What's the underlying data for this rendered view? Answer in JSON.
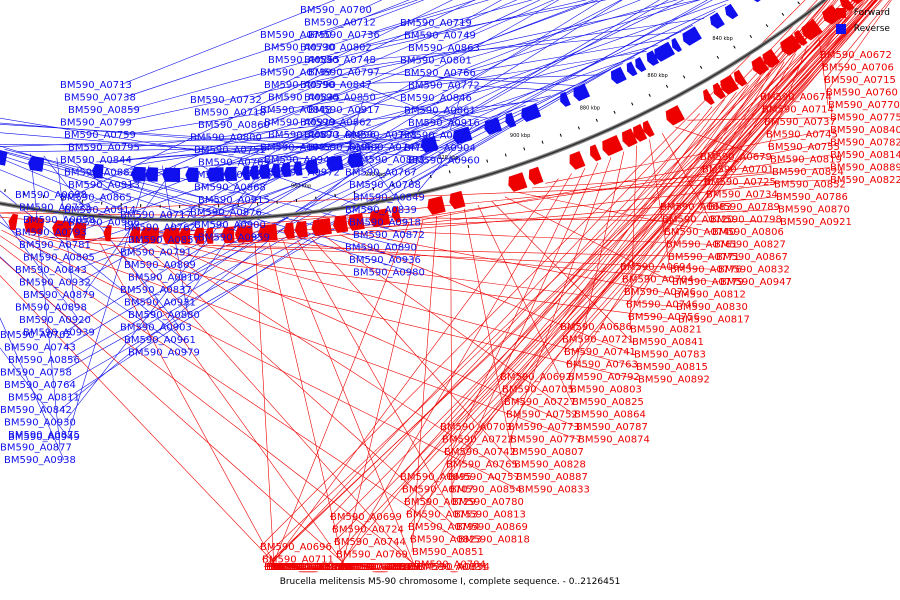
{
  "legend": {
    "forward_label": "Forward",
    "reverse_label": "Reverse",
    "forward_color": "#ee0000",
    "reverse_color": "#1010ee"
  },
  "caption": "Brucella melitensis M5-90 chromosome I, complete sequence. - 0..2126451",
  "scale": {
    "kbp_ticks": [
      "680 kbp",
      "700 kbp",
      "720 kbp",
      "740 kbp",
      "760 kbp",
      "780 kbp",
      "800 kbp",
      "820 kbp",
      "840 kbp",
      "860 kbp",
      "880 kbp",
      "900 kbp",
      "920 kbp",
      "940 kbp",
      "960 kbp"
    ]
  },
  "reverse_genes": [
    "BM590_A0700",
    "BM590_A0719",
    "BM590_A0732",
    "BM590_A0713",
    "BM590_A0698",
    "BM590_A0717",
    "BM590_A0702",
    "BM590_A0750",
    "BM590_A0728",
    "BM590_A0712",
    "BM590_A0749",
    "BM590_A0718",
    "BM590_A0738",
    "BM590_A0723",
    "BM590_A0762",
    "BM590_A0743",
    "BM590_A0730",
    "BM590_A0747",
    "BM590_A0736",
    "BM590_A0863",
    "BM590_A0860",
    "BM590_A0859",
    "BM590_A0858",
    "BM590_A0857",
    "BM590_A0856",
    "BM590_A0855",
    "BM590_A0853",
    "BM590_A0802",
    "BM590_A0801",
    "BM590_A0800",
    "BM590_A0799",
    "BM590_A0793",
    "BM590_A0791",
    "BM590_A0758",
    "BM590_A0739",
    "BM590_A0767",
    "BM590_A0748",
    "BM590_A0766",
    "BM590_A0751",
    "BM590_A0759",
    "BM590_A0781",
    "BM590_A0809",
    "BM590_A0764",
    "BM590_A0790",
    "BM590_A0768",
    "BM590_A0797",
    "BM590_A0772",
    "BM590_A0785",
    "BM590_A0795",
    "BM590_A0805",
    "BM590_A0810",
    "BM590_A0811",
    "BM590_A0835",
    "BM590_A0849",
    "BM590_A0847",
    "BM590_A0846",
    "BM590_A0845",
    "BM590_A0844",
    "BM590_A0843",
    "BM590_A0837",
    "BM590_A0842",
    "BM590_A0848",
    "BM590_A0839",
    "BM590_A0850",
    "BM590_A0861",
    "BM590_A0868",
    "BM590_A0882",
    "BM590_A0932",
    "BM590_A0931",
    "BM590_A0930",
    "BM590_A0929",
    "BM590_A0918",
    "BM590_A0917",
    "BM590_A0916",
    "BM590_A0915",
    "BM590_A0913",
    "BM590_A0879",
    "BM590_A0880",
    "BM590_A0875",
    "BM590_A0873",
    "BM590_A0872",
    "BM590_A0862",
    "BM590_A0871",
    "BM590_A0876",
    "BM590_A0865",
    "BM590_A0898",
    "BM590_A0903",
    "BM590_A0877",
    "BM590_A0933",
    "BM590_A0890",
    "BM590_A0896",
    "BM590_A0904",
    "BM590_A0900",
    "BM590_A0914",
    "BM590_A0920",
    "BM590_A0961",
    "BM590_A0938",
    "BM590_A0946",
    "BM590_A0936",
    "BM590_A0962",
    "BM590_A0960",
    "BM590_A0959",
    "BM590_A0966",
    "BM590_A0939",
    "BM590_A0979",
    "BM590_A0949",
    "BM590_A0972",
    "BM590_A0980"
  ],
  "forward_genes": [
    "BM590_A0672",
    "BM590_A0674",
    "BM590_A0679",
    "BM590_A0683",
    "BM590_A0694",
    "BM590_A0686",
    "BM590_A0692",
    "BM590_A0703",
    "BM590_A0695",
    "BM590_A0699",
    "BM590_A0696",
    "BM590_A0706",
    "BM590_A0714",
    "BM590_A0701",
    "BM590_A0720",
    "BM590_A0704",
    "BM590_A0721",
    "BM590_A0705",
    "BM590_A0722",
    "BM590_A0707",
    "BM590_A0724",
    "BM590_A0711",
    "BM590_A0715",
    "BM590_A0737",
    "BM590_A0725",
    "BM590_A0740",
    "BM590_A0726",
    "BM590_A0741",
    "BM590_A0727",
    "BM590_A0742",
    "BM590_A0729",
    "BM590_A0744",
    "BM590_A0731",
    "BM590_A0760",
    "BM590_A0745",
    "BM590_A0734",
    "BM590_A0761",
    "BM590_A0746",
    "BM590_A0763",
    "BM590_A0752",
    "BM590_A0765",
    "BM590_A0753",
    "BM590_A0769",
    "BM590_A0754",
    "BM590_A0770",
    "BM590_A0755",
    "BM590_A0789",
    "BM590_A0771",
    "BM590_A0756",
    "BM590_A0792",
    "BM590_A0773",
    "BM590_A0757",
    "BM590_A0794",
    "BM590_A0774",
    "BM590_A0796",
    "BM590_A0775",
    "BM590_A0819",
    "BM590_A0798",
    "BM590_A0776",
    "BM590_A0821",
    "BM590_A0803",
    "BM590_A0777",
    "BM590_A0854",
    "BM590_A0823",
    "BM590_A0804",
    "BM590_A0778",
    "BM590_A0840",
    "BM590_A0824",
    "BM590_A0806",
    "BM590_A0779",
    "BM590_A0841",
    "BM590_A0825",
    "BM590_A0807",
    "BM590_A0780",
    "BM590_A0851",
    "BM590_A0826",
    "BM590_A0808",
    "BM590_A0782",
    "BM590_A0852",
    "BM590_A0827",
    "BM590_A0812",
    "BM590_A0783",
    "BM590_A0864",
    "BM590_A0828",
    "BM590_A0813",
    "BM590_A0784",
    "BM590_A0866",
    "BM590_A0829",
    "BM590_A0814",
    "BM590_A0786",
    "BM590_A0867",
    "BM590_A0830",
    "BM590_A0815",
    "BM590_A0787",
    "BM590_A0887",
    "BM590_A0869",
    "BM590_A0831",
    "BM590_A0816",
    "BM590_A0788",
    "BM590_A0889",
    "BM590_A0870",
    "BM590_A0832",
    "BM590_A0817",
    "BM590_A0892",
    "BM590_A0874",
    "BM590_A0833",
    "BM590_A0818",
    "BM590_A0894",
    "BM590_A0820",
    "BM590_A0919",
    "BM590_A0822",
    "BM590_A0921",
    "BM590_A0947"
  ]
}
